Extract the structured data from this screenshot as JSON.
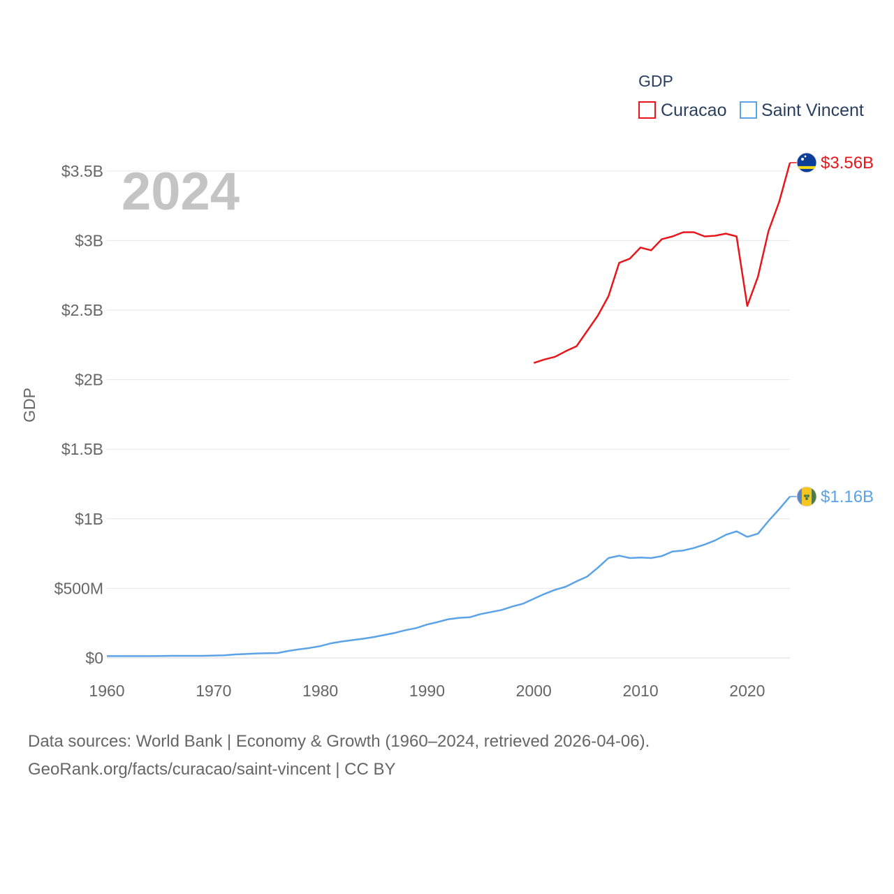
{
  "chart_data": {
    "type": "line",
    "title": "",
    "year_label": "2024",
    "xlabel": "",
    "ylabel": "GDP",
    "xlim": [
      1960,
      2024
    ],
    "ylim": [
      0,
      3700000000
    ],
    "grid": true,
    "x_ticks": [
      1960,
      1970,
      1980,
      1990,
      2000,
      2010,
      2020
    ],
    "x_tick_labels": [
      "1960",
      "1970",
      "1980",
      "1990",
      "2000",
      "2010",
      "2020"
    ],
    "y_ticks": [
      0,
      500000000,
      1000000000,
      1500000000,
      2000000000,
      2500000000,
      3000000000,
      3500000000
    ],
    "y_tick_labels": [
      "$0",
      "$500M",
      "$1B",
      "$1.5B",
      "$2B",
      "$2.5B",
      "$3B",
      "$3.5B"
    ],
    "legend": {
      "title": "GDP",
      "position": "top-right",
      "entries": [
        "Curacao",
        "Saint Vincent"
      ]
    },
    "series": [
      {
        "name": "Curacao",
        "color": "#e8161b",
        "end_label": "$3.56B",
        "flag": "curacao-flag-icon",
        "x": [
          2000,
          2001,
          2002,
          2003,
          2004,
          2005,
          2006,
          2007,
          2008,
          2009,
          2010,
          2011,
          2012,
          2013,
          2014,
          2015,
          2016,
          2017,
          2018,
          2019,
          2020,
          2021,
          2022,
          2023,
          2024
        ],
        "values": [
          2120000000,
          2145000000,
          2165000000,
          2205000000,
          2240000000,
          2350000000,
          2460000000,
          2600000000,
          2840000000,
          2870000000,
          2950000000,
          2930000000,
          3010000000,
          3030000000,
          3060000000,
          3060000000,
          3030000000,
          3035000000,
          3050000000,
          3030000000,
          2530000000,
          2740000000,
          3070000000,
          3280000000,
          3560000000
        ]
      },
      {
        "name": "Saint Vincent",
        "color": "#5ba3e6",
        "end_label": "$1.16B",
        "flag": "saint-vincent-flag-icon",
        "x": [
          1960,
          1961,
          1962,
          1963,
          1964,
          1965,
          1966,
          1967,
          1968,
          1969,
          1970,
          1971,
          1972,
          1973,
          1974,
          1975,
          1976,
          1977,
          1978,
          1979,
          1980,
          1981,
          1982,
          1983,
          1984,
          1985,
          1986,
          1987,
          1988,
          1989,
          1990,
          1991,
          1992,
          1993,
          1994,
          1995,
          1996,
          1997,
          1998,
          1999,
          2000,
          2001,
          2002,
          2003,
          2004,
          2005,
          2006,
          2007,
          2008,
          2009,
          2010,
          2011,
          2012,
          2013,
          2014,
          2015,
          2016,
          2017,
          2018,
          2019,
          2020,
          2021,
          2022,
          2023,
          2024
        ],
        "values": [
          13000000,
          13000000,
          13000000,
          13000000,
          13000000,
          14000000,
          15000000,
          15000000,
          15000000,
          15000000,
          17000000,
          19000000,
          25000000,
          28000000,
          32000000,
          34000000,
          35000000,
          50000000,
          62000000,
          72000000,
          85000000,
          105000000,
          118000000,
          128000000,
          138000000,
          150000000,
          165000000,
          180000000,
          200000000,
          215000000,
          240000000,
          258000000,
          278000000,
          288000000,
          292000000,
          315000000,
          330000000,
          345000000,
          370000000,
          390000000,
          425000000,
          460000000,
          490000000,
          512000000,
          550000000,
          585000000,
          648000000,
          718000000,
          735000000,
          718000000,
          722000000,
          718000000,
          732000000,
          765000000,
          772000000,
          790000000,
          815000000,
          845000000,
          885000000,
          910000000,
          870000000,
          893000000,
          985000000,
          1070000000,
          1160000000
        ]
      }
    ]
  },
  "footer": {
    "line1": "Data sources: World Bank | Economy & Growth (1960–2024, retrieved 2026-04-06).",
    "line2": "GeoRank.org/facts/curacao/saint-vincent | CC BY"
  }
}
